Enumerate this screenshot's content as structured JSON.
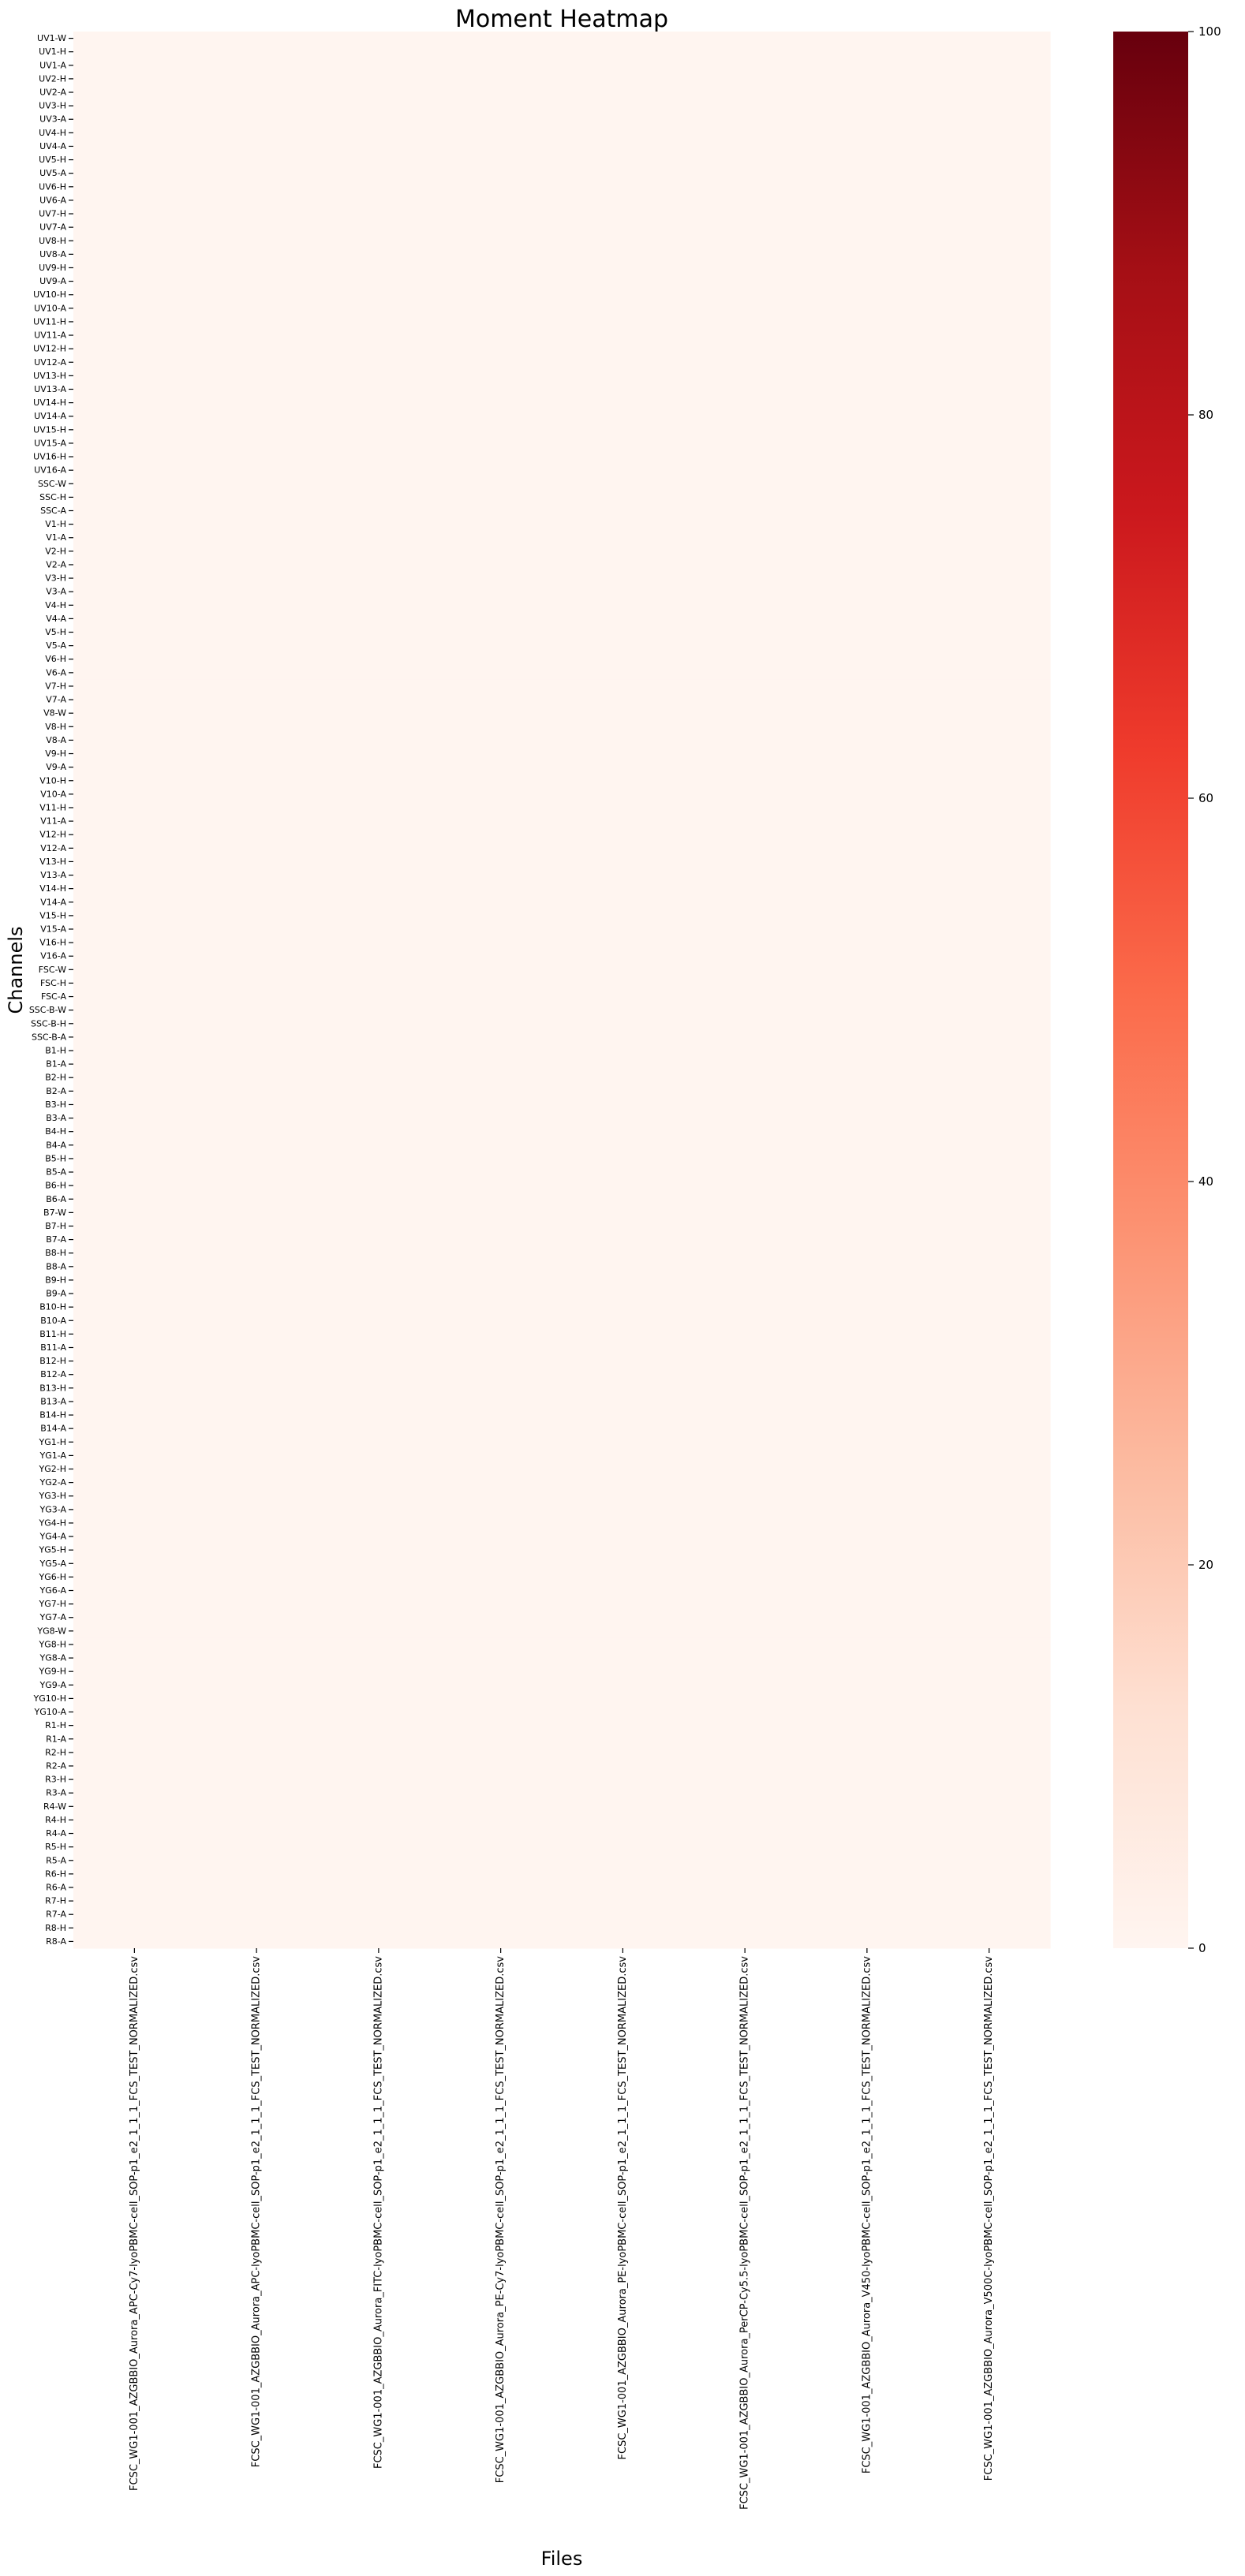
{
  "chart_data": {
    "type": "heatmap",
    "title": "Moment Heatmap",
    "xlabel": "Files",
    "ylabel": "Channels",
    "files": [
      "FCSC_WG1-001_AZGBBIO_Aurora_APC-Cy7-lyoPBMC-cell_SOP-p1_e2_1_1_1_FCS_TEST_NORMALIZED.csv",
      "FCSC_WG1-001_AZGBBIO_Aurora_APC-lyoPBMC-cell_SOP-p1_e2_1_1_1_FCS_TEST_NORMALIZED.csv",
      "FCSC_WG1-001_AZGBBIO_Aurora_FITC-lyoPBMC-cell_SOP-p1_e2_1_1_1_FCS_TEST_NORMALIZED.csv",
      "FCSC_WG1-001_AZGBBIO_Aurora_PE-Cy7-lyoPBMC-cell_SOP-p1_e2_1_1_1_FCS_TEST_NORMALIZED.csv",
      "FCSC_WG1-001_AZGBBIO_Aurora_PE-lyoPBMC-cell_SOP-p1_e2_1_1_1_FCS_TEST_NORMALIZED.csv",
      "FCSC_WG1-001_AZGBBIO_Aurora_PerCP-Cy5.5-lyoPBMC-cell_SOP-p1_e2_1_1_1_FCS_TEST_NORMALIZED.csv",
      "FCSC_WG1-001_AZGBBIO_Aurora_V450-lyoPBMC-cell_SOP-p1_e2_1_1_1_FCS_TEST_NORMALIZED.csv",
      "FCSC_WG1-001_AZGBBIO_Aurora_V500C-lyoPBMC-cell_SOP-p1_e2_1_1_1_FCS_TEST_NORMALIZED.csv"
    ],
    "channels": [
      "UV1-W",
      "UV1-H",
      "UV1-A",
      "UV2-H",
      "UV2-A",
      "UV3-H",
      "UV3-A",
      "UV4-H",
      "UV4-A",
      "UV5-H",
      "UV5-A",
      "UV6-H",
      "UV6-A",
      "UV7-H",
      "UV7-A",
      "UV8-H",
      "UV8-A",
      "UV9-H",
      "UV9-A",
      "UV10-H",
      "UV10-A",
      "UV11-H",
      "UV11-A",
      "UV12-H",
      "UV12-A",
      "UV13-H",
      "UV13-A",
      "UV14-H",
      "UV14-A",
      "UV15-H",
      "UV15-A",
      "UV16-H",
      "UV16-A",
      "SSC-W",
      "SSC-H",
      "SSC-A",
      "V1-H",
      "V1-A",
      "V2-H",
      "V2-A",
      "V3-H",
      "V3-A",
      "V4-H",
      "V4-A",
      "V5-H",
      "V5-A",
      "V6-H",
      "V6-A",
      "V7-H",
      "V7-A",
      "V8-W",
      "V8-H",
      "V8-A",
      "V9-H",
      "V9-A",
      "V10-H",
      "V10-A",
      "V11-H",
      "V11-A",
      "V12-H",
      "V12-A",
      "V13-H",
      "V13-A",
      "V14-H",
      "V14-A",
      "V15-H",
      "V15-A",
      "V16-H",
      "V16-A",
      "FSC-W",
      "FSC-H",
      "FSC-A",
      "SSC-B-W",
      "SSC-B-H",
      "SSC-B-A",
      "B1-H",
      "B1-A",
      "B2-H",
      "B2-A",
      "B3-H",
      "B3-A",
      "B4-H",
      "B4-A",
      "B5-H",
      "B5-A",
      "B6-H",
      "B6-A",
      "B7-W",
      "B7-H",
      "B7-A",
      "B8-H",
      "B8-A",
      "B9-H",
      "B9-A",
      "B10-H",
      "B10-A",
      "B11-H",
      "B11-A",
      "B12-H",
      "B12-A",
      "B13-H",
      "B13-A",
      "B14-H",
      "B14-A",
      "YG1-H",
      "YG1-A",
      "YG2-H",
      "YG2-A",
      "YG3-H",
      "YG3-A",
      "YG4-H",
      "YG4-A",
      "YG5-H",
      "YG5-A",
      "YG6-H",
      "YG6-A",
      "YG7-H",
      "YG7-A",
      "YG8-W",
      "YG8-H",
      "YG8-A",
      "YG9-H",
      "YG9-A",
      "YG10-H",
      "YG10-A",
      "R1-H",
      "R1-A",
      "R2-H",
      "R2-A",
      "R3-H",
      "R3-A",
      "R4-W",
      "R4-H",
      "R4-A",
      "R5-H",
      "R5-A",
      "R6-H",
      "R6-A",
      "R7-H",
      "R7-A",
      "R8-H",
      "R8-A"
    ],
    "cell_value": 0,
    "vmin": 0,
    "vmax": 100,
    "colorbar_ticks": [
      "0",
      "20",
      "40",
      "60",
      "80",
      "100"
    ],
    "colormap": "Reds",
    "colormap_stops": [
      "#fff5f0",
      "#fee0d2",
      "#fcbba1",
      "#fc9272",
      "#fb6a4a",
      "#ef3b2c",
      "#cb181d",
      "#a50f15",
      "#67000d"
    ]
  }
}
